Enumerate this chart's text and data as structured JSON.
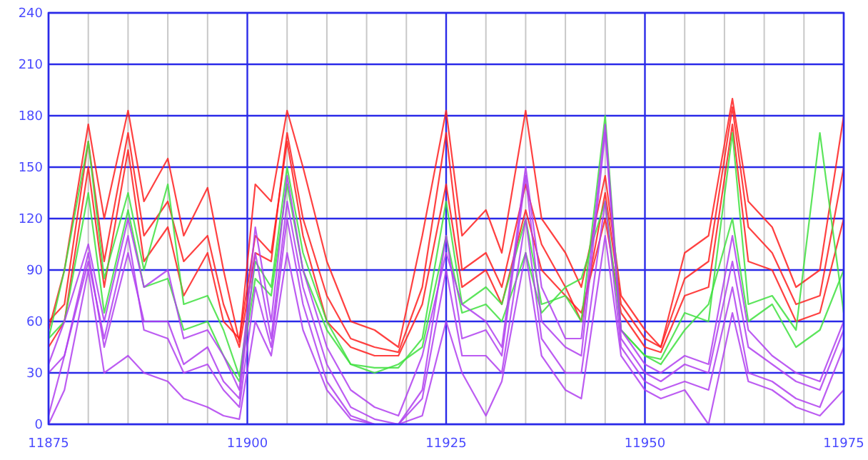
{
  "chart_data": {
    "type": "line",
    "x": [
      11875,
      11877,
      11880,
      11882,
      11885,
      11887,
      11890,
      11892,
      11895,
      11897,
      11899,
      11901,
      11903,
      11905,
      11907,
      11910,
      11913,
      11916,
      11919,
      11922,
      11925,
      11927,
      11930,
      11932,
      11935,
      11937,
      11940,
      11942,
      11945,
      11947,
      11950,
      11952,
      11955,
      11958,
      11961,
      11963,
      11966,
      11969,
      11972,
      11975
    ],
    "series": [
      {
        "color": "#ff2020",
        "values": [
          55,
          90,
          175,
          120,
          183,
          130,
          155,
          110,
          138,
          90,
          48,
          140,
          130,
          183,
          150,
          95,
          60,
          55,
          45,
          110,
          183,
          110,
          125,
          100,
          183,
          120,
          100,
          80,
          145,
          75,
          55,
          45,
          100,
          110,
          190,
          130,
          115,
          80,
          90,
          180
        ]
      },
      {
        "color": "#ff2020",
        "values": [
          60,
          70,
          165,
          95,
          170,
          110,
          130,
          95,
          110,
          70,
          45,
          100,
          95,
          170,
          120,
          75,
          50,
          45,
          42,
          80,
          170,
          90,
          100,
          80,
          140,
          105,
          80,
          60,
          135,
          70,
          50,
          45,
          85,
          95,
          185,
          115,
          100,
          70,
          75,
          150
        ]
      },
      {
        "color": "#ff2020",
        "values": [
          45,
          60,
          150,
          80,
          160,
          95,
          115,
          75,
          100,
          60,
          50,
          110,
          100,
          165,
          110,
          60,
          45,
          40,
          40,
          70,
          140,
          80,
          90,
          70,
          125,
          90,
          75,
          65,
          120,
          65,
          45,
          42,
          75,
          80,
          175,
          95,
          90,
          60,
          65,
          120
        ]
      },
      {
        "color": "#40e040",
        "values": [
          50,
          90,
          165,
          85,
          135,
          90,
          140,
          70,
          75,
          55,
          28,
          95,
          80,
          150,
          100,
          60,
          35,
          33,
          33,
          50,
          130,
          70,
          80,
          70,
          120,
          70,
          75,
          60,
          180,
          55,
          40,
          38,
          65,
          60,
          170,
          70,
          75,
          55,
          170,
          65
        ]
      },
      {
        "color": "#40e040",
        "values": [
          50,
          60,
          135,
          65,
          125,
          80,
          85,
          55,
          60,
          40,
          25,
          85,
          75,
          140,
          90,
          55,
          35,
          30,
          35,
          45,
          110,
          65,
          70,
          60,
          100,
          65,
          80,
          85,
          130,
          55,
          40,
          35,
          55,
          70,
          120,
          60,
          70,
          45,
          55,
          90
        ]
      },
      {
        "color": "#b040f0",
        "values": [
          35,
          60,
          105,
          60,
          120,
          80,
          90,
          50,
          55,
          40,
          20,
          115,
          60,
          145,
          90,
          45,
          20,
          10,
          5,
          40,
          100,
          70,
          60,
          45,
          150,
          80,
          50,
          50,
          175,
          55,
          35,
          30,
          40,
          35,
          110,
          55,
          40,
          30,
          25,
          60
        ]
      },
      {
        "color": "#b040f0",
        "values": [
          30,
          40,
          100,
          45,
          100,
          60,
          60,
          35,
          45,
          25,
          15,
          100,
          50,
          130,
          80,
          35,
          10,
          3,
          0,
          20,
          110,
          50,
          55,
          40,
          145,
          60,
          45,
          40,
          170,
          50,
          30,
          25,
          35,
          30,
          95,
          45,
          35,
          25,
          20,
          55
        ]
      },
      {
        "color": "#b040f0",
        "values": [
          5,
          40,
          95,
          50,
          110,
          55,
          50,
          30,
          35,
          20,
          10,
          80,
          45,
          120,
          70,
          25,
          5,
          0,
          0,
          15,
          90,
          40,
          40,
          30,
          120,
          50,
          30,
          30,
          130,
          45,
          25,
          20,
          25,
          20,
          80,
          30,
          25,
          15,
          10,
          45
        ]
      },
      {
        "color": "#b040f0",
        "values": [
          0,
          20,
          90,
          30,
          40,
          30,
          25,
          15,
          10,
          5,
          3,
          60,
          40,
          100,
          55,
          20,
          3,
          0,
          0,
          5,
          60,
          30,
          5,
          25,
          100,
          40,
          20,
          15,
          110,
          40,
          20,
          15,
          20,
          0,
          65,
          25,
          20,
          10,
          5,
          20
        ]
      }
    ],
    "xlim": [
      11875,
      11975
    ],
    "xticks": [
      11875,
      {
        "value": 11880,
        "label": null
      },
      {
        "value": 11885,
        "label": null
      },
      {
        "value": 11890,
        "label": null
      },
      {
        "value": 11895,
        "label": null
      },
      11900,
      {
        "value": 11905,
        "label": null
      },
      {
        "value": 11910,
        "label": null
      },
      {
        "value": 11915,
        "label": null
      },
      {
        "value": 11920,
        "label": null
      },
      11925,
      {
        "value": 11930,
        "label": null
      },
      {
        "value": 11935,
        "label": null
      },
      {
        "value": 11940,
        "label": null
      },
      {
        "value": 11945,
        "label": null
      },
      11950,
      {
        "value": 11955,
        "label": null
      },
      {
        "value": 11960,
        "label": null
      },
      {
        "value": 11965,
        "label": null
      },
      {
        "value": 11970,
        "label": null
      },
      11975
    ],
    "ylim": [
      0,
      240
    ],
    "yticks": [
      0,
      30,
      60,
      90,
      120,
      150,
      180,
      210,
      240
    ],
    "grid": true,
    "marker": "none",
    "line_style": "solid"
  }
}
